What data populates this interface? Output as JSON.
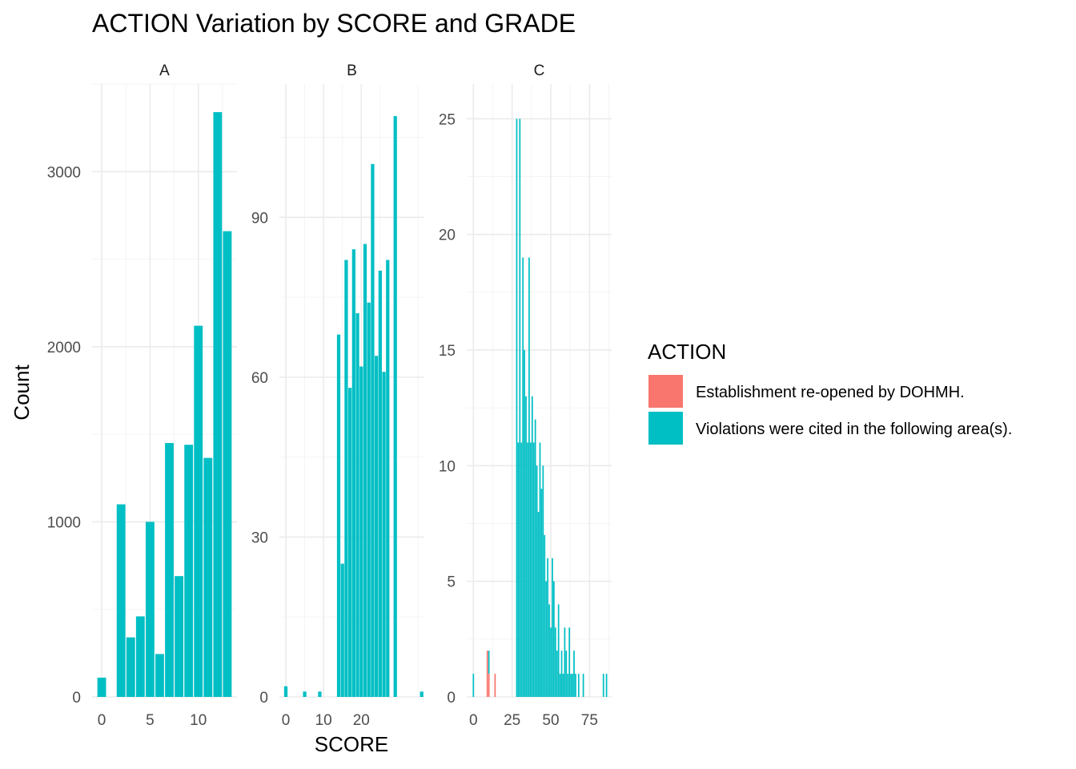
{
  "chart_data": {
    "type": "bar",
    "title": "ACTION Variation by SCORE and GRADE",
    "xlabel": "SCORE",
    "ylabel": "Count",
    "facet_variable": "GRADE",
    "legend": {
      "title": "ACTION",
      "position": "right",
      "entries": [
        {
          "label": "Establishment re-opened by DOHMH.",
          "color": "#F8766D"
        },
        {
          "label": "Violations were cited in the following area(s).",
          "color": "#00BFC4"
        }
      ]
    },
    "grid": true,
    "facets": [
      {
        "label": "A",
        "xlim": [
          -1,
          14
        ],
        "ylim": [
          0,
          3500
        ],
        "x_ticks": [
          0,
          5,
          10
        ],
        "y_ticks": [
          0,
          1000,
          2000,
          3000
        ],
        "series": [
          {
            "name": "Violations were cited in the following area(s).",
            "color": "#00BFC4",
            "x": [
              0,
              2,
              3,
              4,
              5,
              6,
              7,
              8,
              9,
              10,
              11,
              12,
              13
            ],
            "values": [
              110,
              1100,
              340,
              460,
              1000,
              245,
              1450,
              690,
              1440,
              2120,
              1365,
              3340,
              2660
            ]
          }
        ]
      },
      {
        "label": "B",
        "xlim": [
          -1.7,
          36.7
        ],
        "ylim": [
          0,
          115
        ],
        "x_ticks": [
          0,
          10,
          20
        ],
        "y_ticks": [
          0,
          30,
          60,
          90
        ],
        "series": [
          {
            "name": "Violations were cited in the following area(s).",
            "color": "#00BFC4",
            "x": [
              0,
              5,
              9,
              14,
              15,
              16,
              17,
              18,
              19,
              20,
              21,
              22,
              23,
              24,
              25,
              26,
              27,
              29,
              36
            ],
            "values": [
              2,
              1,
              1,
              68,
              25,
              82,
              58,
              84,
              72,
              62,
              85,
              74,
              100,
              64,
              80,
              61,
              82,
              109,
              1
            ]
          }
        ]
      },
      {
        "label": "C",
        "xlim": [
          -4.3,
          89.3
        ],
        "ylim": [
          0,
          26.5
        ],
        "x_ticks": [
          0,
          25,
          50,
          75
        ],
        "y_ticks": [
          0,
          5,
          10,
          15,
          20,
          25
        ],
        "series": [
          {
            "name": "Establishment re-opened by DOHMH.",
            "color": "#F8766D",
            "x": [
              9,
              10,
              14
            ],
            "values": [
              2,
              1,
              1
            ]
          },
          {
            "name": "Violations were cited in the following area(s).",
            "color": "#00BFC4",
            "x": [
              0,
              10,
              28,
              29,
              30,
              31,
              32,
              33,
              34,
              35,
              36,
              37,
              38,
              39,
              40,
              41,
              42,
              43,
              44,
              45,
              46,
              47,
              48,
              49,
              50,
              51,
              52,
              53,
              54,
              55,
              56,
              57,
              58,
              59,
              60,
              61,
              62,
              63,
              64,
              65,
              66,
              68,
              71,
              84,
              86
            ],
            "values": [
              1,
              1,
              25,
              11,
              25,
              11,
              19,
              15,
              13,
              11,
              19,
              11,
              13,
              11,
              12,
              10,
              8,
              11,
              9,
              10,
              7,
              5,
              6,
              4,
              3,
              6,
              5,
              3,
              2,
              4,
              1,
              2,
              1,
              3,
              2,
              1,
              3,
              1,
              1,
              2,
              1,
              1,
              1,
              1,
              1
            ]
          }
        ]
      }
    ]
  }
}
